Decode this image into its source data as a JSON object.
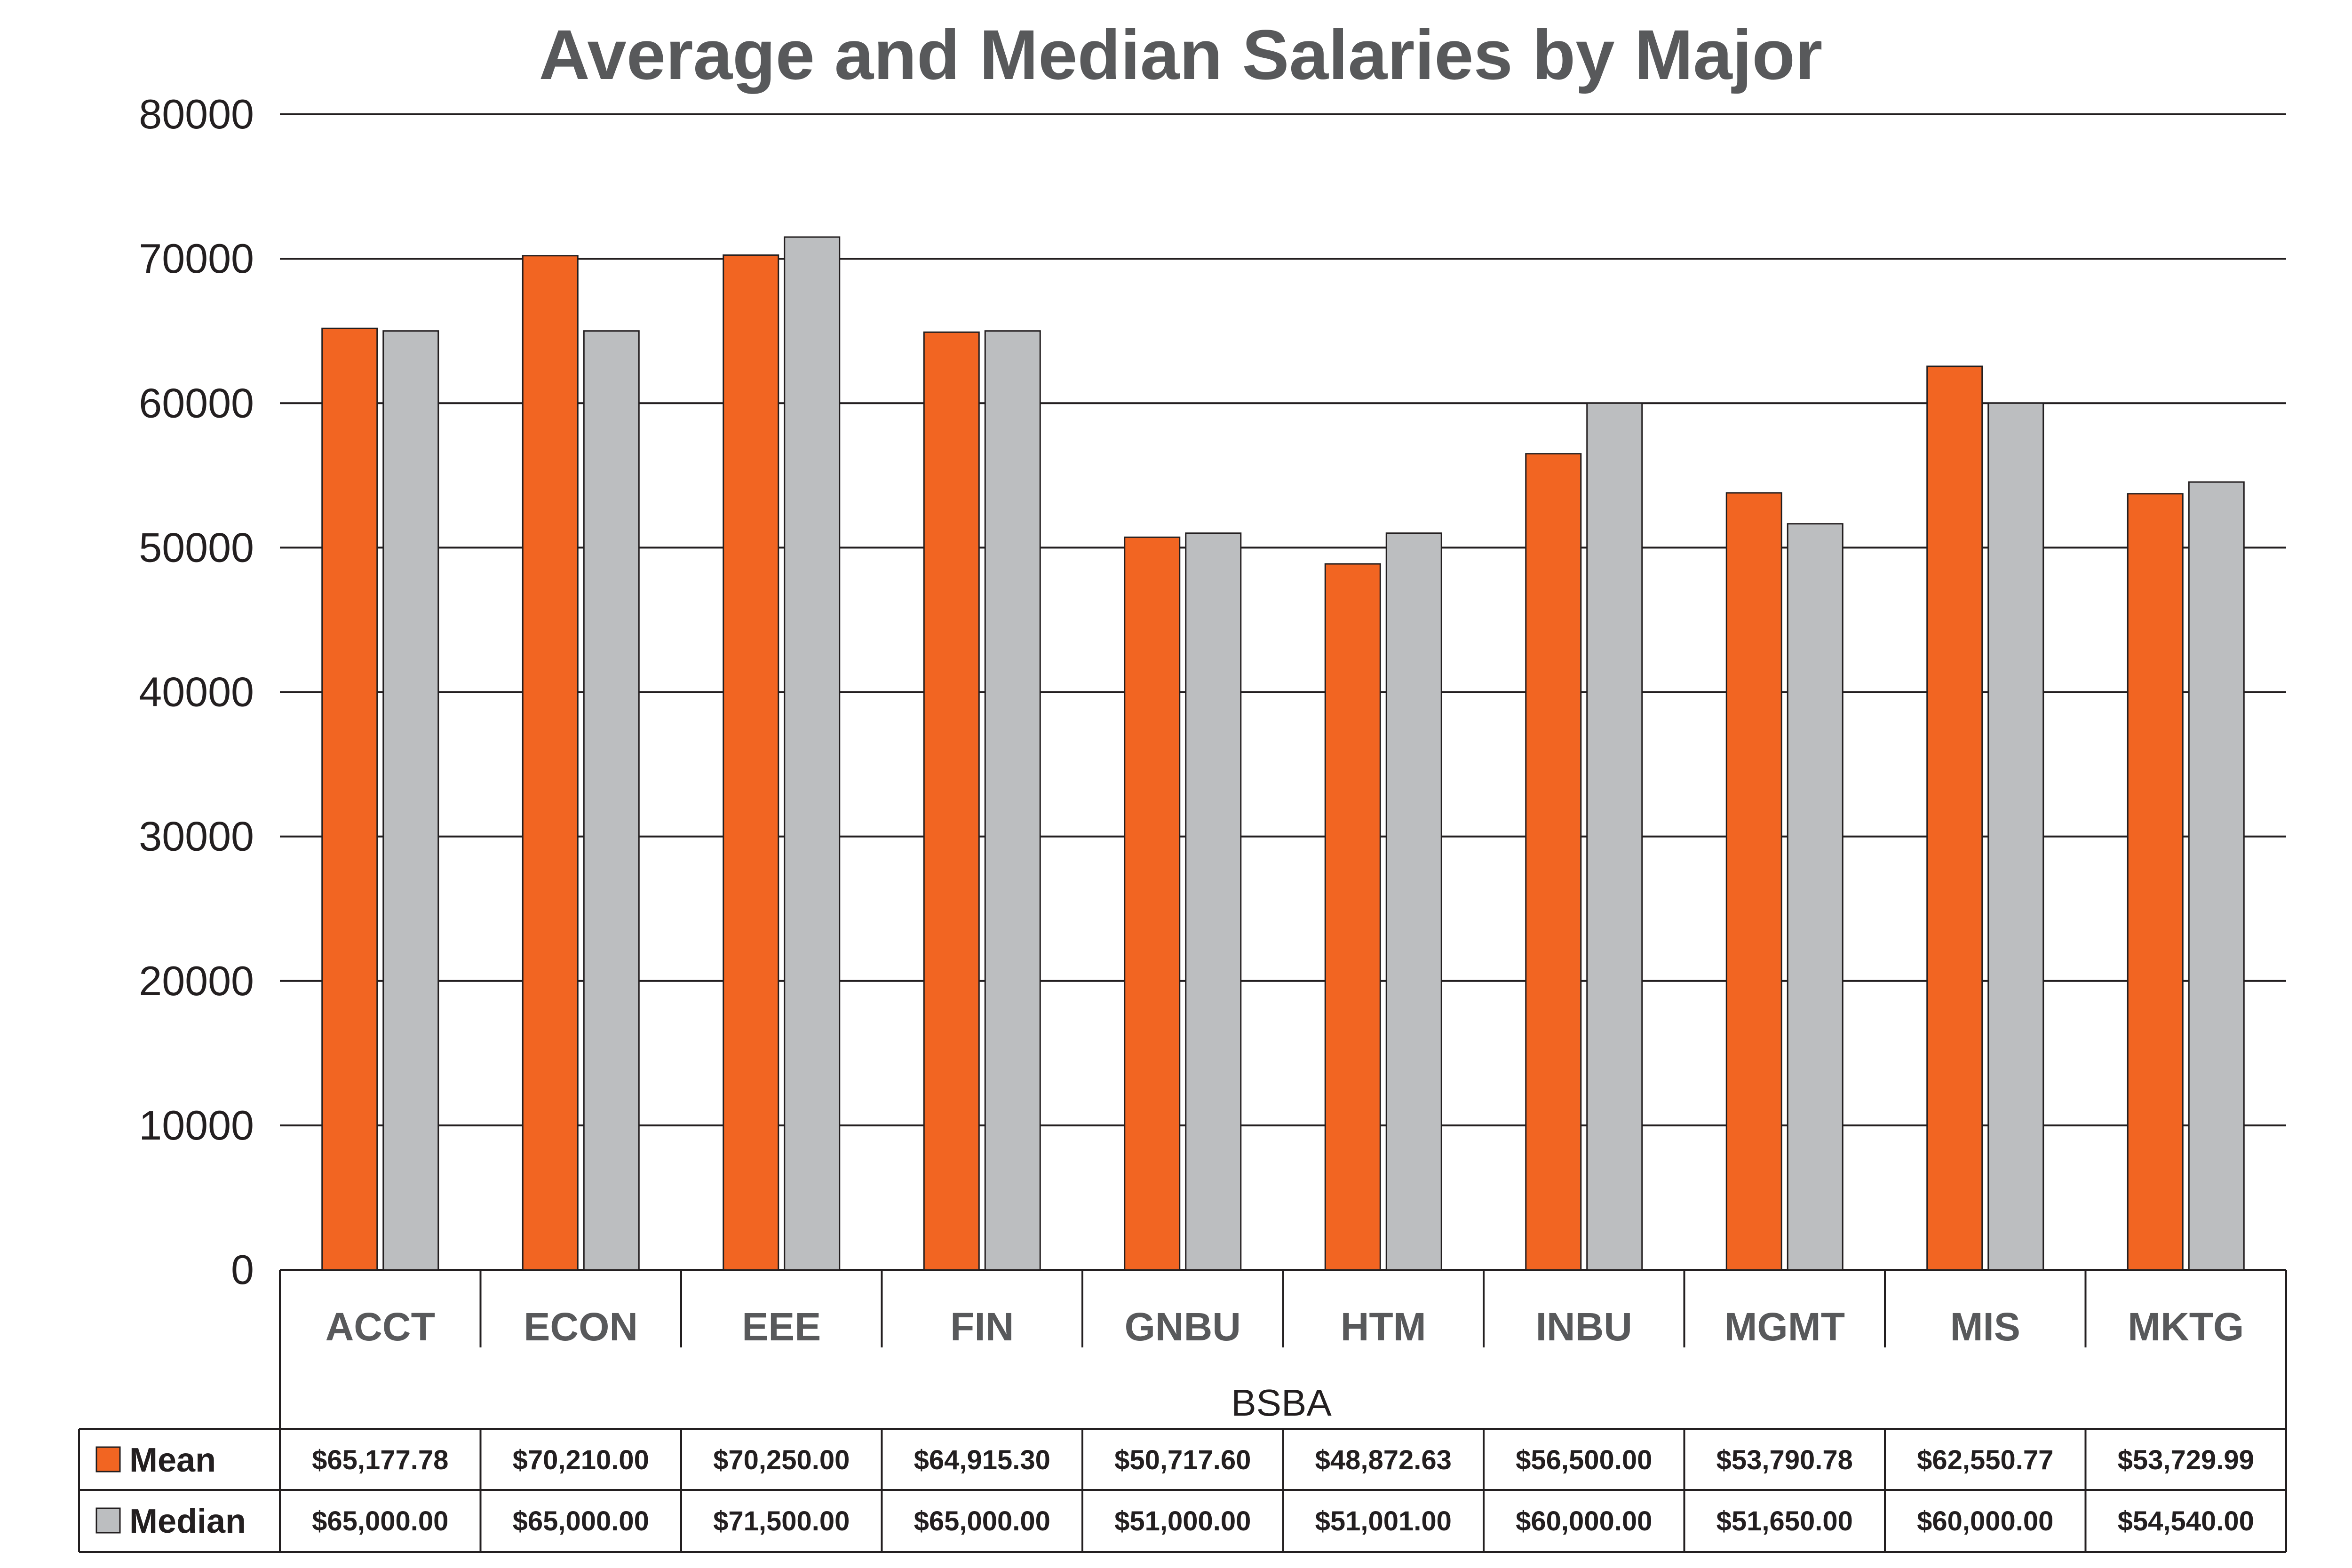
{
  "chart_data": {
    "type": "bar",
    "title": "Average and Median Salaries by Major",
    "group_label": "BSBA",
    "categories": [
      "ACCT",
      "ECON",
      "EEE",
      "FIN",
      "GNBU",
      "HTM",
      "INBU",
      "MGMT",
      "MIS",
      "MKTG"
    ],
    "series": [
      {
        "name": "Mean",
        "color": "#f26522",
        "values": [
          65177.78,
          70210.0,
          70250.0,
          64915.3,
          50717.6,
          48872.63,
          56500.0,
          53790.78,
          62550.77,
          53729.99
        ],
        "labels": [
          "$65,177.78",
          "$70,210.00",
          "$70,250.00",
          "$64,915.30",
          "$50,717.60",
          "$48,872.63",
          "$56,500.00",
          "$53,790.78",
          "$62,550.77",
          "$53,729.99"
        ]
      },
      {
        "name": "Median",
        "color": "#bcbec0",
        "values": [
          65000.0,
          65000.0,
          71500.0,
          65000.0,
          51000.0,
          51001.0,
          60000.0,
          51650.0,
          60000.0,
          54540.0
        ],
        "labels": [
          "$65,000.00",
          "$65,000.00",
          "$71,500.00",
          "$65,000.00",
          "$51,000.00",
          "$51,001.00",
          "$60,000.00",
          "$51,650.00",
          "$60,000.00",
          "$54,540.00"
        ]
      }
    ],
    "ylim": [
      0,
      80000
    ],
    "yticks": [
      "0",
      "10000",
      "20000",
      "30000",
      "40000",
      "50000",
      "60000",
      "70000",
      "80000"
    ],
    "grid": true,
    "legend": "data-table"
  }
}
